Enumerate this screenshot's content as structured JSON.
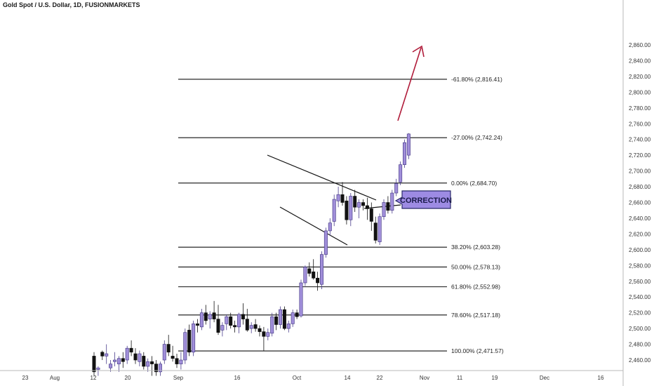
{
  "header": {
    "title": "Gold Spot / U.S. Dollar, 1D, FUSIONMARKETS"
  },
  "colors": {
    "up": "#a08ed9",
    "down": "#111111",
    "arrow": "#b01c3a",
    "callout": "#9d8be3",
    "callout_border": "#2a2a6a"
  },
  "annotations": {
    "callout_text": "CORRECTION"
  },
  "chart_data": {
    "type": "candlestick",
    "title": "Gold Spot / U.S. Dollar, 1D, FUSIONMARKETS",
    "ylim": [
      2450,
      2860
    ],
    "y_ticks": [
      2460,
      2480,
      2500,
      2520,
      2540,
      2560,
      2580,
      2600,
      2620,
      2640,
      2660,
      2680,
      2700,
      2720,
      2740,
      2760,
      2780,
      2800,
      2820,
      2840,
      2860
    ],
    "x_tick_labels": [
      "23",
      "Aug",
      "12",
      "20",
      "Sep",
      "16",
      "Oct",
      "14",
      "22",
      "Nov",
      "11",
      "19",
      "Dec",
      "16"
    ],
    "grid": false,
    "fib_levels": [
      {
        "label": "-61.80% (2,816.41)",
        "value": 2816.41
      },
      {
        "label": "-27.00% (2,742.24)",
        "value": 2742.24
      },
      {
        "label": "0.00% (2,684.70)",
        "value": 2684.7
      },
      {
        "label": "38.20% (2,603.28)",
        "value": 2603.28
      },
      {
        "label": "50.00% (2,578.13)",
        "value": 2578.13
      },
      {
        "label": "61.80% (2,552.98)",
        "value": 2552.98
      },
      {
        "label": "78.60% (2,517.18)",
        "value": 2517.18
      },
      {
        "label": "100.00% (2,471.57)",
        "value": 2471.57
      }
    ],
    "candles": [
      [
        2465,
        2470,
        2440,
        2445
      ],
      [
        2448,
        2452,
        2440,
        2450
      ],
      [
        2470,
        2472,
        2460,
        2465
      ],
      [
        2465,
        2480,
        2455,
        2468
      ],
      [
        2450,
        2460,
        2445,
        2455
      ],
      [
        2458,
        2470,
        2452,
        2460
      ],
      [
        2455,
        2465,
        2445,
        2462
      ],
      [
        2462,
        2470,
        2450,
        2458
      ],
      [
        2460,
        2478,
        2455,
        2475
      ],
      [
        2475,
        2485,
        2465,
        2470
      ],
      [
        2468,
        2475,
        2455,
        2460
      ],
      [
        2458,
        2472,
        2452,
        2468
      ],
      [
        2465,
        2470,
        2448,
        2452
      ],
      [
        2452,
        2462,
        2445,
        2458
      ],
      [
        2458,
        2465,
        2440,
        2455
      ],
      [
        2455,
        2460,
        2440,
        2445
      ],
      [
        2445,
        2458,
        2440,
        2455
      ],
      [
        2460,
        2485,
        2455,
        2480
      ],
      [
        2480,
        2492,
        2465,
        2470
      ],
      [
        2465,
        2478,
        2458,
        2462
      ],
      [
        2462,
        2468,
        2450,
        2455
      ],
      [
        2455,
        2470,
        2448,
        2460
      ],
      [
        2460,
        2500,
        2455,
        2495
      ],
      [
        2498,
        2505,
        2465,
        2470
      ],
      [
        2470,
        2510,
        2465,
        2506
      ],
      [
        2506,
        2512,
        2495,
        2504
      ],
      [
        2502,
        2525,
        2498,
        2520
      ],
      [
        2520,
        2530,
        2505,
        2510
      ],
      [
        2512,
        2522,
        2500,
        2518
      ],
      [
        2520,
        2535,
        2508,
        2512
      ],
      [
        2512,
        2530,
        2492,
        2495
      ],
      [
        2498,
        2508,
        2490,
        2504
      ],
      [
        2506,
        2518,
        2498,
        2515
      ],
      [
        2515,
        2520,
        2500,
        2504
      ],
      [
        2504,
        2510,
        2495,
        2502
      ],
      [
        2502,
        2520,
        2494,
        2518
      ],
      [
        2518,
        2532,
        2505,
        2512
      ],
      [
        2512,
        2525,
        2496,
        2498
      ],
      [
        2500,
        2508,
        2494,
        2504
      ],
      [
        2505,
        2512,
        2496,
        2500
      ],
      [
        2500,
        2504,
        2490,
        2496
      ],
      [
        2496,
        2502,
        2472,
        2490
      ],
      [
        2490,
        2500,
        2485,
        2495
      ],
      [
        2494,
        2520,
        2490,
        2515
      ],
      [
        2515,
        2520,
        2498,
        2505
      ],
      [
        2505,
        2528,
        2500,
        2524
      ],
      [
        2524,
        2528,
        2498,
        2500
      ],
      [
        2500,
        2510,
        2495,
        2506
      ],
      [
        2506,
        2524,
        2502,
        2520
      ],
      [
        2520,
        2524,
        2512,
        2515
      ],
      [
        2516,
        2562,
        2514,
        2558
      ],
      [
        2558,
        2580,
        2554,
        2578
      ],
      [
        2576,
        2584,
        2566,
        2570
      ],
      [
        2572,
        2588,
        2562,
        2564
      ],
      [
        2564,
        2572,
        2548,
        2558
      ],
      [
        2556,
        2598,
        2550,
        2594
      ],
      [
        2594,
        2628,
        2590,
        2624
      ],
      [
        2624,
        2640,
        2618,
        2634
      ],
      [
        2636,
        2670,
        2630,
        2664
      ],
      [
        2662,
        2680,
        2654,
        2670
      ],
      [
        2670,
        2686,
        2656,
        2660
      ],
      [
        2662,
        2668,
        2632,
        2638
      ],
      [
        2638,
        2672,
        2630,
        2668
      ],
      [
        2668,
        2676,
        2648,
        2654
      ],
      [
        2654,
        2664,
        2640,
        2660
      ],
      [
        2660,
        2664,
        2650,
        2656
      ],
      [
        2656,
        2666,
        2638,
        2652
      ],
      [
        2652,
        2660,
        2624,
        2636
      ],
      [
        2634,
        2642,
        2608,
        2612
      ],
      [
        2610,
        2646,
        2606,
        2642
      ],
      [
        2642,
        2664,
        2638,
        2660
      ],
      [
        2660,
        2668,
        2646,
        2650
      ],
      [
        2650,
        2676,
        2646,
        2672
      ],
      [
        2672,
        2690,
        2668,
        2684
      ],
      [
        2686,
        2712,
        2682,
        2708
      ],
      [
        2708,
        2740,
        2704,
        2736
      ],
      [
        2720,
        2748,
        2715,
        2747
      ]
    ]
  }
}
